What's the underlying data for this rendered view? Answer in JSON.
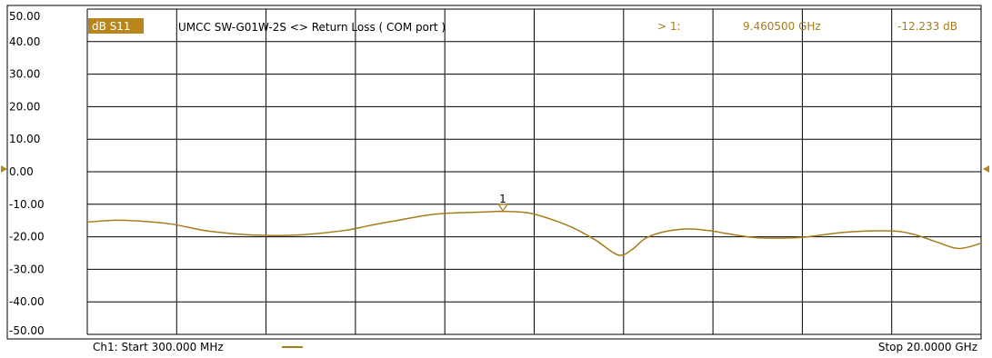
{
  "window": {
    "trace_badge": "dB S11",
    "title": "UMCC  SW-G01W-2S <> Return Loss ( COM port )",
    "marker_readout": {
      "label": "> 1:",
      "frequency": "9.460500 GHz",
      "value": "-12.233 dB"
    },
    "footer_start": "Ch1: Start  300.000 MHz",
    "footer_stop": "Stop  20.0000 GHz"
  },
  "colors": {
    "trace": "#a67c1a",
    "badge_bg": "#b8861a",
    "badge_text": "#ffffff",
    "readout_text": "#a67c1a",
    "grid": "#000000",
    "background": "#ffffff"
  },
  "chart_data": {
    "type": "line",
    "title": "UMCC  SW-G01W-2S <> Return Loss ( COM port )",
    "xlabel": "",
    "ylabel": "",
    "xlim": [
      0.3,
      20.0
    ],
    "ylim": [
      -50,
      50
    ],
    "y_tick_labels": [
      "50.00",
      "40.00",
      "30.00",
      "20.00",
      "10.00",
      "0.00",
      "-10.00",
      "-20.00",
      "-30.00",
      "-40.00",
      "-50.00"
    ],
    "reference_level": 0,
    "grid": true,
    "series": [
      {
        "x": [
          0.3,
          1.0,
          2.0,
          2.5,
          3.0,
          4.0,
          5.0,
          6.0,
          6.5,
          7.0,
          8.0,
          9.0,
          9.46,
          10.0,
          10.5,
          11.0,
          11.5,
          12.0,
          12.3,
          12.6,
          13.0,
          13.5,
          14.0,
          15.0,
          16.0,
          17.0,
          18.0,
          18.5,
          19.0,
          19.5,
          20.0
        ],
        "values": [
          -15.5,
          -14.9,
          -15.8,
          -17.0,
          -18.3,
          -19.5,
          -19.4,
          -18.0,
          -16.6,
          -15.3,
          -13.0,
          -12.4,
          -12.2,
          -12.6,
          -14.5,
          -17.2,
          -21.0,
          -25.6,
          -24.0,
          -20.5,
          -18.5,
          -17.6,
          -18.1,
          -20.2,
          -20.2,
          -18.6,
          -18.2,
          -19.2,
          -21.5,
          -23.6,
          -22.0
        ]
      }
    ],
    "markers": [
      {
        "label": "1",
        "x": 9.4605,
        "y": -12.233
      }
    ]
  }
}
